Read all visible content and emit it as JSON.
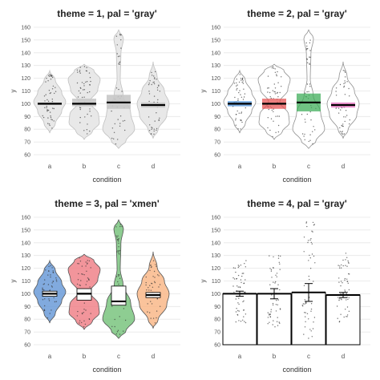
{
  "chart_data": [
    {
      "type": "violin",
      "title": "theme = 1, pal = 'gray'",
      "xlabel": "condition",
      "ylabel": "y",
      "categories": [
        "a",
        "b",
        "c",
        "d"
      ],
      "ylim": [
        60,
        160
      ],
      "yticks": [
        "60",
        "70",
        "80",
        "90",
        "100",
        "110",
        "120",
        "130",
        "140",
        "150",
        "160"
      ],
      "means": [
        100,
        100,
        101,
        99
      ],
      "ci": [
        [
          99,
          101
        ],
        [
          98,
          104
        ],
        [
          96,
          107
        ],
        [
          97,
          101
        ]
      ],
      "ranges": [
        [
          77,
          126
        ],
        [
          72,
          131
        ],
        [
          65,
          158
        ],
        [
          73,
          133
        ]
      ],
      "grid": "horizontal",
      "background": "#ffffff",
      "colors": [
        "#e8e8e8",
        "#e8e8e8",
        "#e8e8e8",
        "#e8e8e8"
      ],
      "ci_color": "#c8c8c8",
      "mean_color": "#000000",
      "violin_stroke": "#c0c0c0"
    },
    {
      "type": "violin",
      "title": "theme = 2, pal = 'gray'",
      "xlabel": "condition",
      "ylabel": "y",
      "categories": [
        "a",
        "b",
        "c",
        "d"
      ],
      "ylim": [
        60,
        160
      ],
      "yticks": [
        "60",
        "70",
        "80",
        "90",
        "100",
        "110",
        "120",
        "130",
        "140",
        "150",
        "160"
      ],
      "means": [
        100,
        100,
        101,
        99
      ],
      "ci": [
        [
          98,
          102
        ],
        [
          96,
          104
        ],
        [
          94,
          108
        ],
        [
          97,
          101
        ]
      ],
      "ranges": [
        [
          77,
          126
        ],
        [
          72,
          131
        ],
        [
          65,
          158
        ],
        [
          73,
          133
        ]
      ],
      "grid": "horizontal",
      "background": "#ffffff",
      "colors": [
        "#ffffff",
        "#ffffff",
        "#ffffff",
        "#ffffff"
      ],
      "ci_colors": [
        "#4a90d9",
        "#e55454",
        "#3fae5a",
        "#e86fc2"
      ],
      "mean_color": "#000000",
      "violin_stroke": "#909090"
    },
    {
      "type": "violin",
      "title": "theme = 3, pal = 'xmen'",
      "xlabel": "condition",
      "ylabel": "y",
      "categories": [
        "a",
        "b",
        "c",
        "d"
      ],
      "ylim": [
        60,
        160
      ],
      "yticks": [
        "60",
        "70",
        "80",
        "90",
        "100",
        "110",
        "120",
        "130",
        "140",
        "150",
        "160"
      ],
      "means": [
        100,
        100,
        94,
        99
      ],
      "ci": [
        [
          98,
          102
        ],
        [
          95,
          104
        ],
        [
          91,
          106
        ],
        [
          97,
          101
        ]
      ],
      "ranges": [
        [
          77,
          126
        ],
        [
          72,
          131
        ],
        [
          65,
          158
        ],
        [
          73,
          133
        ]
      ],
      "grid": "horizontal",
      "background": "#ffffff",
      "colors": [
        "#6b9bd8",
        "#f08389",
        "#7ac47f",
        "#f9b98a"
      ],
      "ci_color": "#ffffff",
      "mean_color": "#000000",
      "violin_stroke": "#555555"
    },
    {
      "type": "bar",
      "title": "theme = 4, pal = 'gray'",
      "xlabel": "condition",
      "ylabel": "y",
      "categories": [
        "a",
        "b",
        "c",
        "d"
      ],
      "ylim": [
        60,
        160
      ],
      "yticks": [
        "60",
        "70",
        "80",
        "90",
        "100",
        "110",
        "120",
        "130",
        "140",
        "150",
        "160"
      ],
      "values": [
        100,
        100,
        101,
        99
      ],
      "error": [
        [
          98,
          102
        ],
        [
          96,
          104
        ],
        [
          94,
          108
        ],
        [
          97,
          101
        ]
      ],
      "ranges": [
        [
          77,
          126
        ],
        [
          72,
          131
        ],
        [
          65,
          158
        ],
        [
          73,
          133
        ]
      ],
      "grid": "horizontal",
      "background": "#ffffff",
      "colors": [
        "#ffffff",
        "#ffffff",
        "#ffffff",
        "#ffffff"
      ],
      "bar_stroke": "#000000"
    }
  ]
}
